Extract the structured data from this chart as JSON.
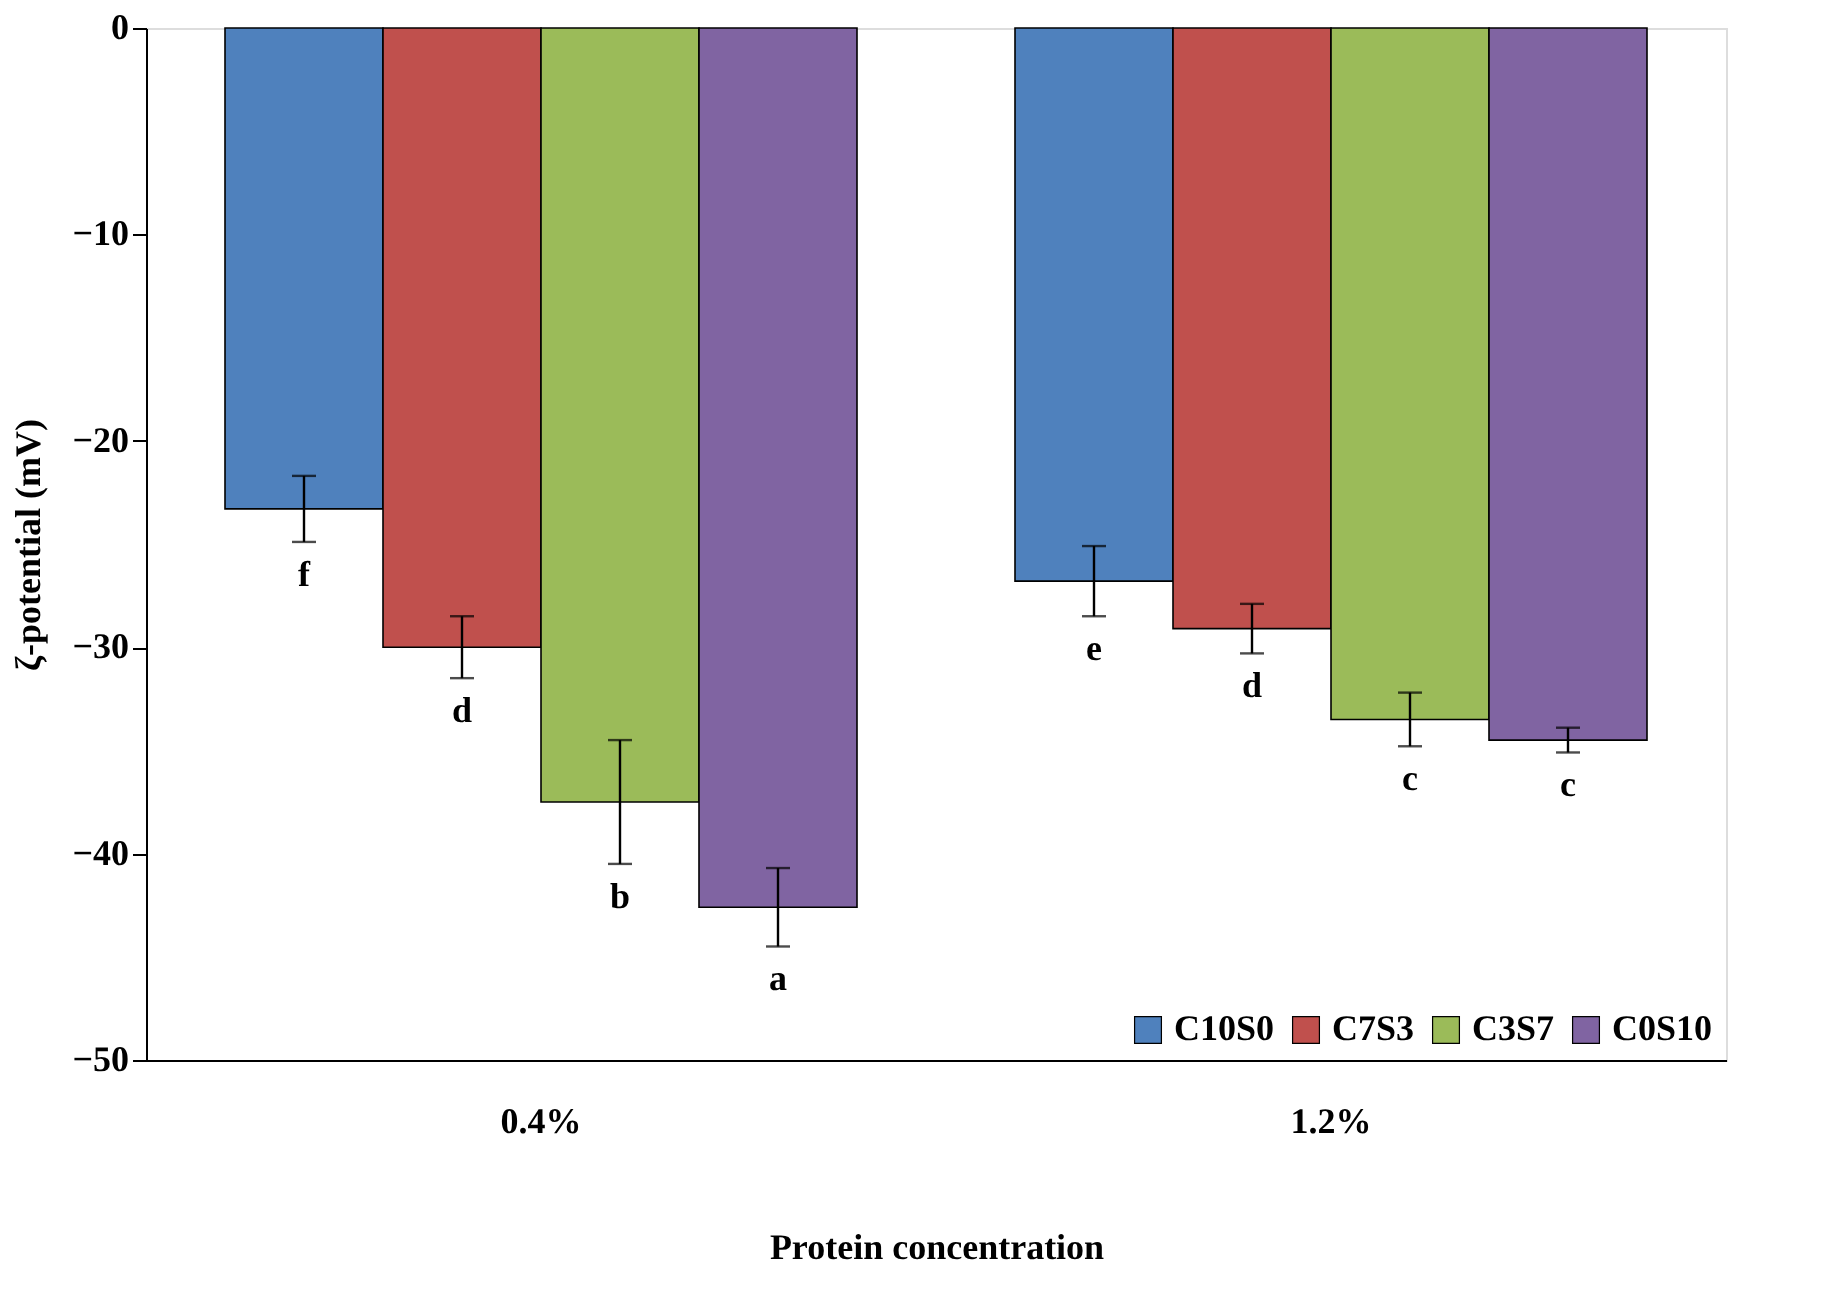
{
  "chart_data": {
    "type": "bar",
    "xlabel": "Protein concentration",
    "ylabel": "ζ-potential (mV)",
    "categories": [
      "0.4%",
      "1.2%"
    ],
    "series": [
      {
        "name": "C10S0",
        "color": "#4f81bd",
        "values": [
          -23.3,
          -26.8
        ],
        "errors": [
          1.6,
          1.7
        ],
        "value_labels": [
          "f",
          "e"
        ]
      },
      {
        "name": "C7S3",
        "color": "#c0504d",
        "values": [
          -30.0,
          -29.1
        ],
        "errors": [
          1.5,
          1.2
        ],
        "value_labels": [
          "d",
          "d"
        ]
      },
      {
        "name": "C3S7",
        "color": "#9bbb59",
        "values": [
          -37.5,
          -33.5
        ],
        "errors": [
          3.0,
          1.3
        ],
        "value_labels": [
          "b",
          "c"
        ]
      },
      {
        "name": "C0S10",
        "color": "#8064a2",
        "values": [
          -42.6,
          -34.5
        ],
        "errors": [
          1.9,
          0.6
        ],
        "value_labels": [
          "a",
          "c"
        ]
      }
    ],
    "ylim": [
      -50,
      0
    ],
    "yticks": [
      -50,
      -40,
      -30,
      -20,
      -10,
      0
    ],
    "grid": false,
    "legend": "bottom right"
  }
}
